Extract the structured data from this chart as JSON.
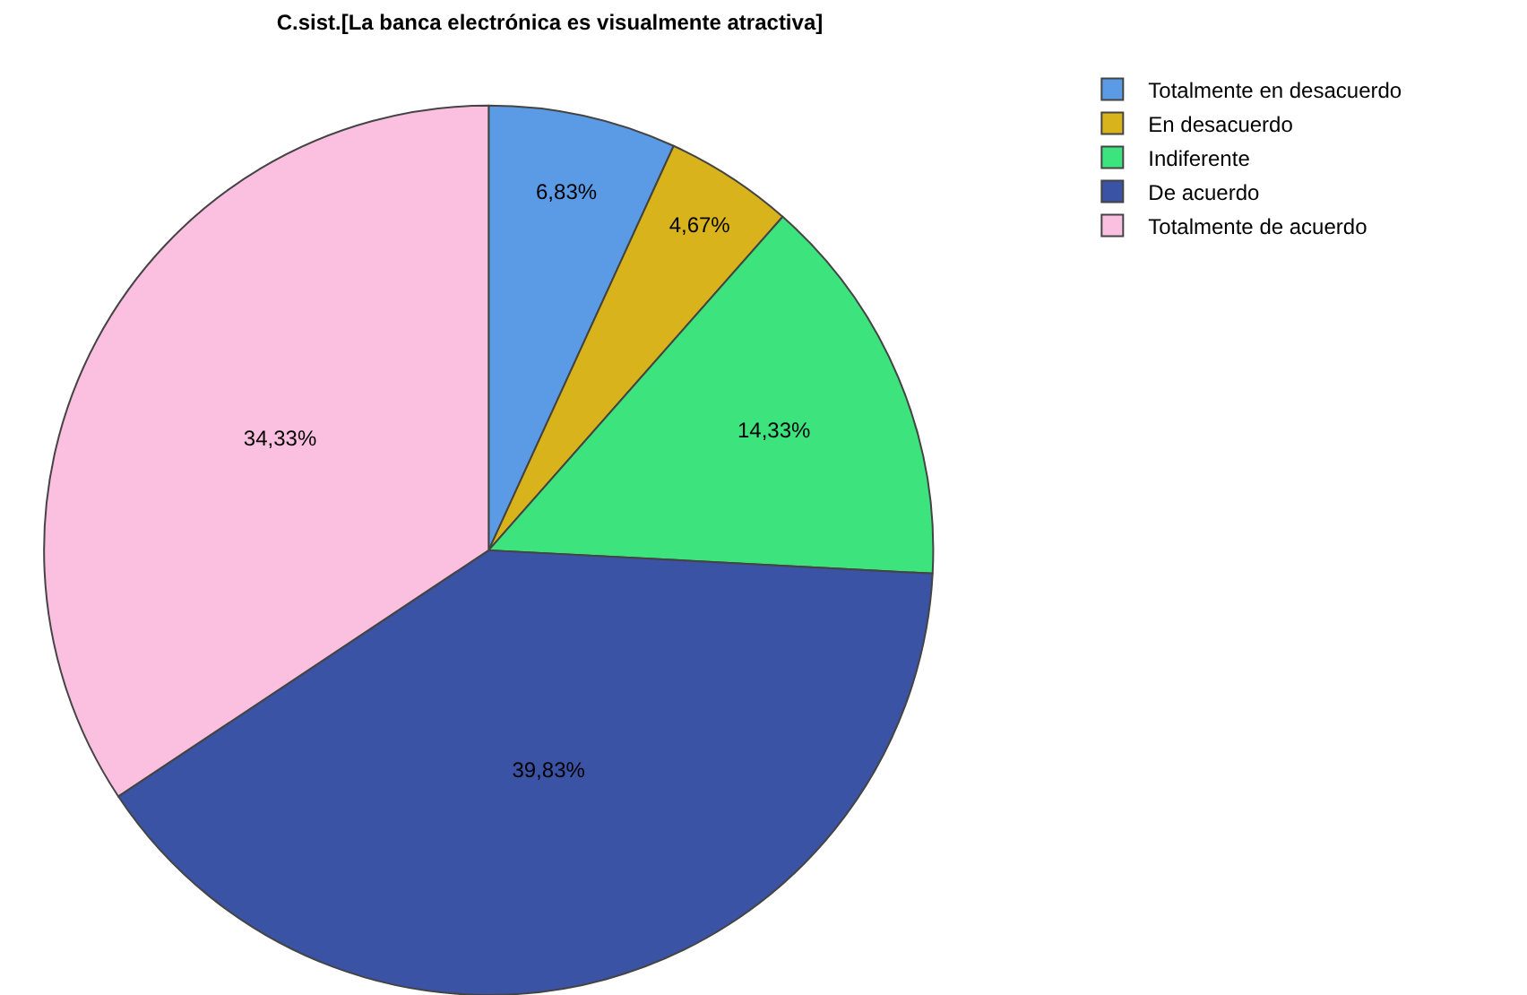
{
  "chart_data": {
    "type": "pie",
    "title": "C.sist.[La banca electrónica es visualmente atractiva]",
    "categories": [
      "Totalmente en desacuerdo",
      "En desacuerdo",
      "Indiferente",
      "De acuerdo",
      "Totalmente de acuerdo"
    ],
    "values": [
      6.83,
      4.67,
      14.33,
      39.83,
      34.33
    ],
    "value_labels": [
      "6,83%",
      "4,67%",
      "14,33%",
      "39,83%",
      "34,33%"
    ],
    "colors": [
      "#5b9be6",
      "#d9b31c",
      "#3de37d",
      "#3b53a4",
      "#fbc0e0"
    ],
    "legend": "top right"
  }
}
